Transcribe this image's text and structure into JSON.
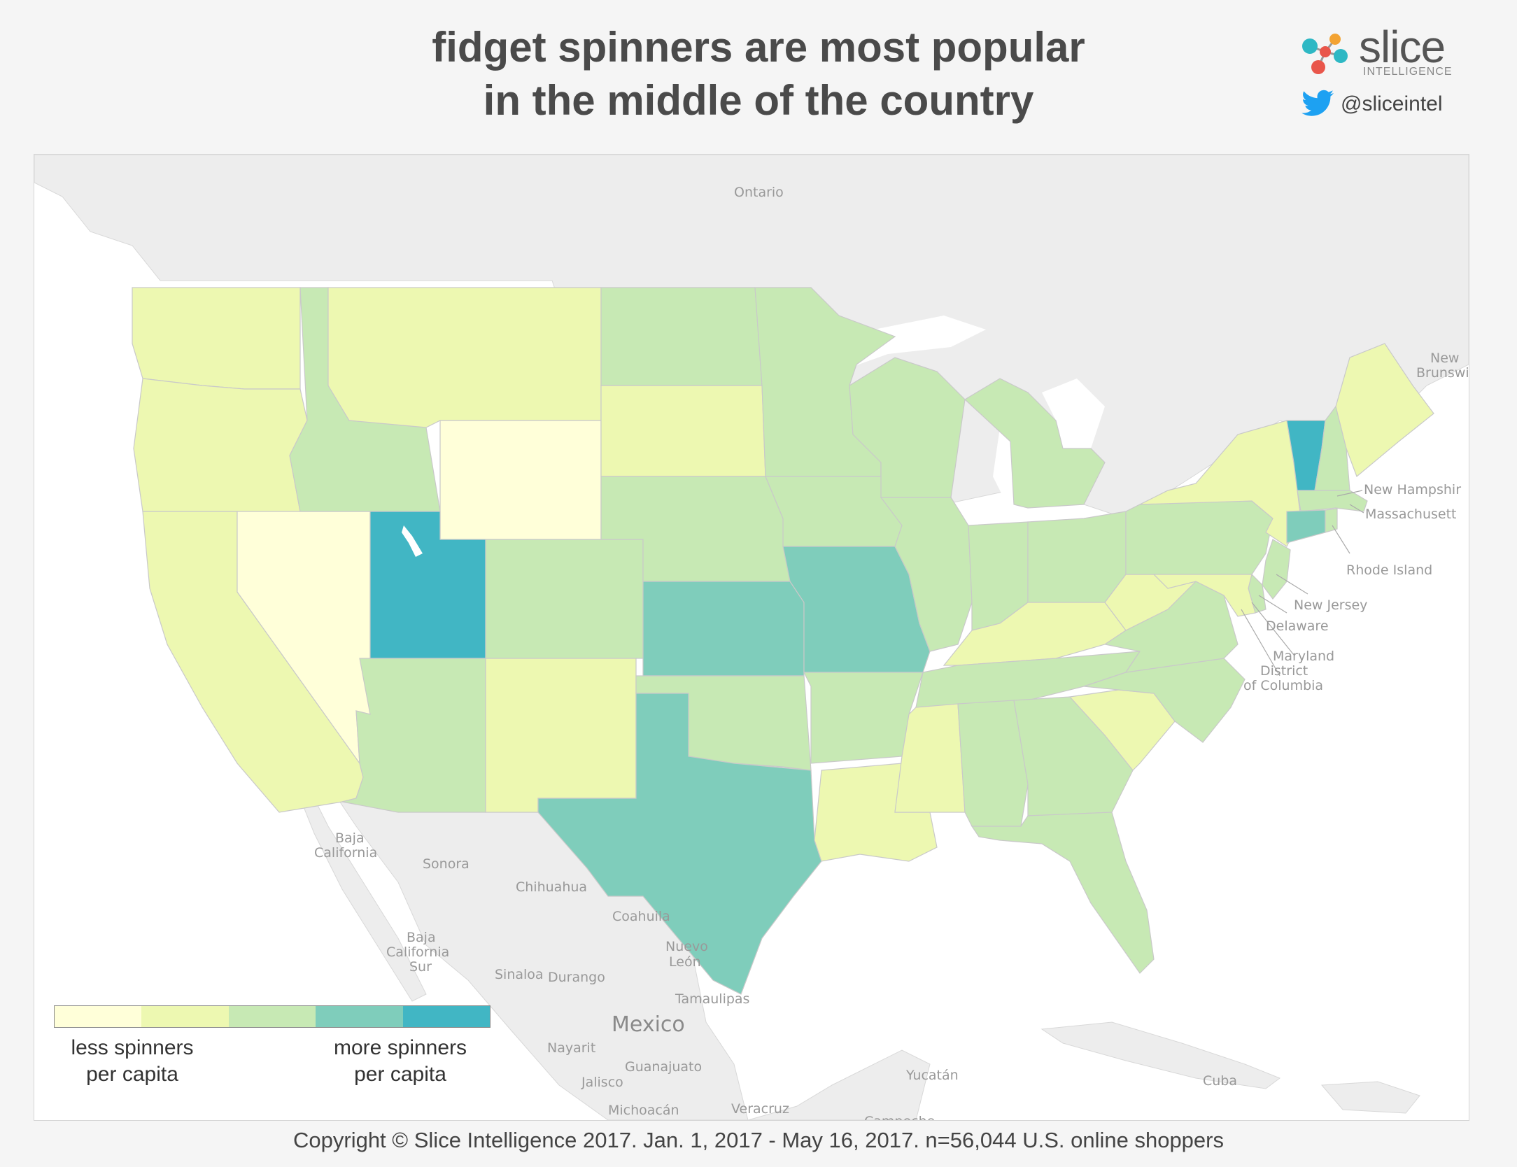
{
  "title": {
    "line1": "fidget spinners are most popular",
    "line2": "in the middle of the country"
  },
  "brand": {
    "name": "slice",
    "sub": "INTELLIGENCE",
    "twitter_handle": "@sliceintel",
    "logo_icon": "slice-molecule-logo",
    "twitter_icon": "twitter-bird-icon",
    "twitter_color": "#1da1f2"
  },
  "legend": {
    "colors": [
      "#ffffd9",
      "#edf8b1",
      "#c7e9b4",
      "#7fcdbb",
      "#41b6c4"
    ],
    "less_line1": "less spinners",
    "less_line2": "per capita",
    "more_line1": "more spinners",
    "more_line2": "per capita"
  },
  "map_labels": {
    "ontario": "Ontario",
    "new_brunswick_1": "New",
    "new_brunswick_2": "Brunswi",
    "new_hampshire": "New Hampshir",
    "massachusetts": "Massachusett",
    "rhode_island": "Rhode Island",
    "new_jersey": "New Jersey",
    "delaware": "Delaware",
    "maryland": "Maryland",
    "dc_1": "District",
    "dc_2": "of Columbia",
    "baja_california_1": "Baja",
    "baja_california_2": "California",
    "sonora": "Sonora",
    "chihuahua": "Chihuahua",
    "coahuila": "Coahuila",
    "nuevo_leon_1": "Nuevo",
    "nuevo_leon_2": "León",
    "baja_sur_1": "Baja",
    "baja_sur_2": "California",
    "baja_sur_3": "Sur",
    "sinaloa": "Sinaloa",
    "durango": "Durango",
    "tamaulipas": "Tamaulipas",
    "mexico": "Mexico",
    "nayarit": "Nayarit",
    "guanajuato": "Guanajuato",
    "jalisco": "Jalisco",
    "michoacan": "Michoacán",
    "veracruz": "Veracruz",
    "yucatan": "Yucatán",
    "campeche": "Campeche",
    "cuba": "Cuba"
  },
  "states": [
    {
      "name": "Washington",
      "level": 2
    },
    {
      "name": "Oregon",
      "level": 2
    },
    {
      "name": "California",
      "level": 2
    },
    {
      "name": "Nevada",
      "level": 1
    },
    {
      "name": "Idaho",
      "level": 3
    },
    {
      "name": "Montana",
      "level": 2
    },
    {
      "name": "Wyoming",
      "level": 1
    },
    {
      "name": "Utah",
      "level": 5
    },
    {
      "name": "Arizona",
      "level": 3
    },
    {
      "name": "Colorado",
      "level": 3
    },
    {
      "name": "New Mexico",
      "level": 2
    },
    {
      "name": "North Dakota",
      "level": 3
    },
    {
      "name": "South Dakota",
      "level": 2
    },
    {
      "name": "Nebraska",
      "level": 3
    },
    {
      "name": "Kansas",
      "level": 4
    },
    {
      "name": "Oklahoma",
      "level": 3
    },
    {
      "name": "Texas",
      "level": 4
    },
    {
      "name": "Minnesota",
      "level": 3
    },
    {
      "name": "Iowa",
      "level": 3
    },
    {
      "name": "Missouri",
      "level": 4
    },
    {
      "name": "Arkansas",
      "level": 3
    },
    {
      "name": "Louisiana",
      "level": 2
    },
    {
      "name": "Wisconsin",
      "level": 3
    },
    {
      "name": "Illinois",
      "level": 3
    },
    {
      "name": "Michigan",
      "level": 3
    },
    {
      "name": "Indiana",
      "level": 3
    },
    {
      "name": "Ohio",
      "level": 3
    },
    {
      "name": "Kentucky",
      "level": 2
    },
    {
      "name": "Tennessee",
      "level": 3
    },
    {
      "name": "Mississippi",
      "level": 2
    },
    {
      "name": "Alabama",
      "level": 3
    },
    {
      "name": "Georgia",
      "level": 3
    },
    {
      "name": "Florida",
      "level": 3
    },
    {
      "name": "South Carolina",
      "level": 2
    },
    {
      "name": "North Carolina",
      "level": 3
    },
    {
      "name": "Virginia",
      "level": 3
    },
    {
      "name": "West Virginia",
      "level": 2
    },
    {
      "name": "Pennsylvania",
      "level": 3
    },
    {
      "name": "New York",
      "level": 2
    },
    {
      "name": "Vermont",
      "level": 5
    },
    {
      "name": "New Hampshire",
      "level": 3
    },
    {
      "name": "Maine",
      "level": 2
    },
    {
      "name": "Massachusetts",
      "level": 3
    },
    {
      "name": "Connecticut",
      "level": 4
    },
    {
      "name": "Rhode Island",
      "level": 3
    },
    {
      "name": "New Jersey",
      "level": 3
    },
    {
      "name": "Delaware",
      "level": 3
    },
    {
      "name": "Maryland",
      "level": 2
    }
  ],
  "footer": "Copyright © Slice Intelligence 2017. Jan. 1, 2017 - May 16, 2017. n=56,044 U.S. online shoppers"
}
